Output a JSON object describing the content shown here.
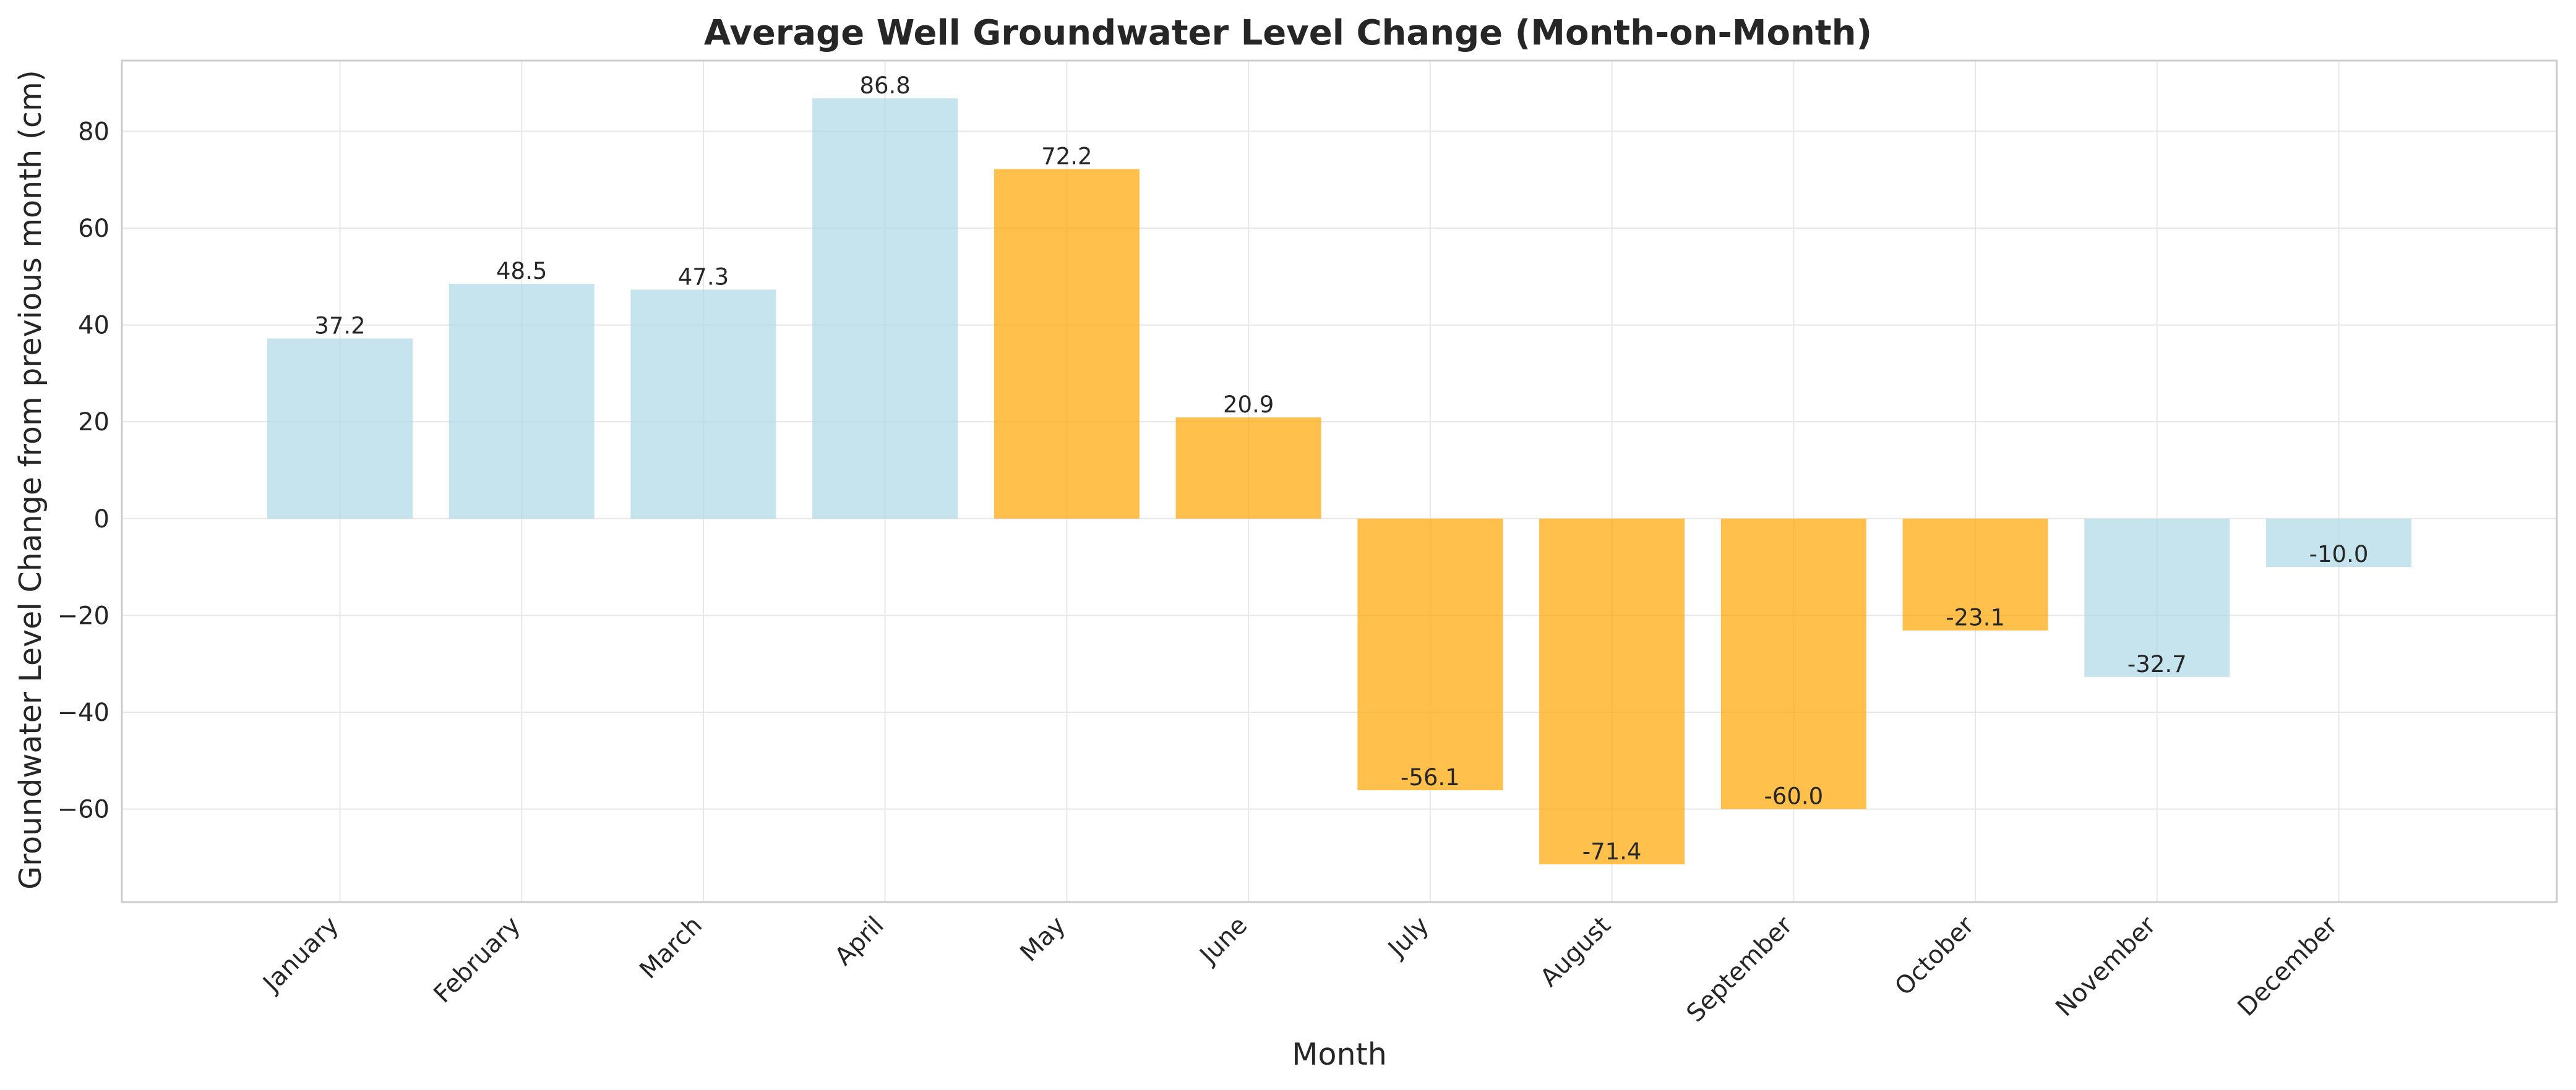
{
  "chart_data": {
    "type": "bar",
    "title": "Average Well Groundwater Level Change (Month-on-Month)",
    "xlabel": "Month",
    "ylabel": "Groundwater Level Change from previous month (cm)",
    "categories": [
      "January",
      "February",
      "March",
      "April",
      "May",
      "June",
      "July",
      "August",
      "September",
      "October",
      "November",
      "December"
    ],
    "values": [
      37.2,
      48.5,
      47.3,
      86.8,
      72.2,
      20.9,
      -56.1,
      -71.4,
      -60.0,
      -23.1,
      -32.7,
      -10.0
    ],
    "value_labels": [
      "37.2",
      "48.5",
      "47.3",
      "86.8",
      "72.2",
      "20.9",
      "-56.1",
      "-71.4",
      "-60.0",
      "-23.1",
      "-32.7",
      "-10.0"
    ],
    "highlighted": [
      false,
      false,
      false,
      false,
      true,
      true,
      true,
      true,
      true,
      true,
      false,
      false
    ],
    "colors": {
      "normal": "#add8e6",
      "highlight": "#ffa500"
    },
    "ylim": [
      -79.2,
      94.6
    ],
    "yticks": [
      -60,
      -40,
      -20,
      0,
      20,
      40,
      60,
      80
    ],
    "ytick_labels": [
      "−60",
      "−40",
      "−20",
      "0",
      "20",
      "40",
      "60",
      "80"
    ],
    "grid": true,
    "legend": "none"
  }
}
